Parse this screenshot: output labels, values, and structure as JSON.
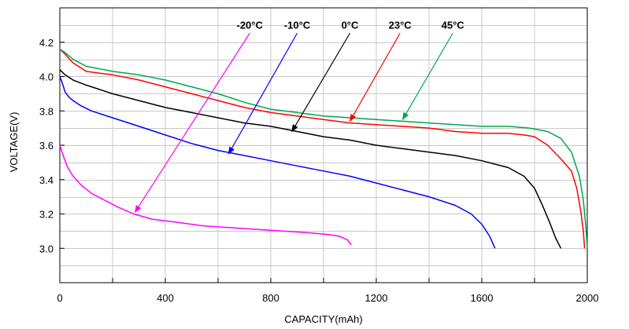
{
  "chart_data": {
    "type": "line",
    "title": "",
    "xlabel": "CAPACITY(mAh)",
    "ylabel": "VOLTAGE(V)",
    "xlim": [
      0,
      2000
    ],
    "ylim": [
      2.8,
      4.4
    ],
    "grid": true,
    "x_ticks": [
      0,
      400,
      800,
      1200,
      1600,
      2000
    ],
    "x_tick_labels": [
      "0",
      "400",
      "800",
      "1200",
      "1600",
      "2000"
    ],
    "y_ticks": [
      3.0,
      3.2,
      3.4,
      3.6,
      3.8,
      4.0,
      4.2
    ],
    "y_tick_labels": [
      "3.0",
      "3.2",
      "3.4",
      "3.6",
      "3.8",
      "4.0",
      "4.2"
    ],
    "series": [
      {
        "name": "-20°C",
        "color": "#ff00ff",
        "x": [
          0,
          15,
          30,
          50,
          80,
          120,
          170,
          220,
          280,
          350,
          450,
          550,
          650,
          750,
          850,
          950,
          1020,
          1060,
          1090,
          1105
        ],
        "y": [
          3.6,
          3.53,
          3.47,
          3.42,
          3.37,
          3.32,
          3.28,
          3.24,
          3.2,
          3.17,
          3.15,
          3.13,
          3.12,
          3.11,
          3.1,
          3.09,
          3.08,
          3.07,
          3.05,
          3.02
        ]
      },
      {
        "name": "-10°C",
        "color": "#0000ff",
        "x": [
          0,
          10,
          20,
          35,
          50,
          80,
          120,
          200,
          300,
          400,
          500,
          600,
          700,
          800,
          900,
          1000,
          1100,
          1200,
          1300,
          1400,
          1500,
          1560,
          1600,
          1630,
          1650
        ],
        "y": [
          4.0,
          3.96,
          3.91,
          3.88,
          3.86,
          3.83,
          3.8,
          3.76,
          3.71,
          3.66,
          3.61,
          3.57,
          3.54,
          3.51,
          3.48,
          3.45,
          3.42,
          3.38,
          3.34,
          3.3,
          3.25,
          3.2,
          3.14,
          3.07,
          3.0
        ]
      },
      {
        "name": "0°C",
        "color": "#000000",
        "x": [
          0,
          20,
          50,
          100,
          200,
          300,
          400,
          500,
          600,
          700,
          800,
          900,
          1000,
          1100,
          1200,
          1300,
          1400,
          1500,
          1600,
          1700,
          1760,
          1800,
          1830,
          1860,
          1880,
          1900
        ],
        "y": [
          4.04,
          4.01,
          3.98,
          3.95,
          3.9,
          3.86,
          3.82,
          3.79,
          3.76,
          3.73,
          3.71,
          3.68,
          3.65,
          3.63,
          3.6,
          3.58,
          3.56,
          3.54,
          3.51,
          3.47,
          3.42,
          3.35,
          3.25,
          3.14,
          3.06,
          3.0
        ]
      },
      {
        "name": "23°C",
        "color": "#ff0000",
        "x": [
          0,
          20,
          50,
          100,
          200,
          300,
          400,
          500,
          600,
          700,
          800,
          900,
          1000,
          1100,
          1200,
          1300,
          1400,
          1500,
          1600,
          1700,
          1760,
          1800,
          1850,
          1900,
          1940,
          1960,
          1975,
          1985,
          1990
        ],
        "y": [
          4.16,
          4.13,
          4.08,
          4.03,
          4.01,
          3.98,
          3.94,
          3.9,
          3.86,
          3.82,
          3.79,
          3.77,
          3.75,
          3.73,
          3.72,
          3.71,
          3.7,
          3.68,
          3.67,
          3.67,
          3.66,
          3.65,
          3.6,
          3.52,
          3.45,
          3.35,
          3.22,
          3.1,
          3.0
        ]
      },
      {
        "name": "45°C",
        "color": "#00a651",
        "x": [
          0,
          20,
          50,
          100,
          200,
          300,
          400,
          500,
          600,
          700,
          800,
          900,
          1000,
          1100,
          1200,
          1300,
          1400,
          1500,
          1600,
          1650,
          1700,
          1780,
          1850,
          1900,
          1940,
          1970,
          1985,
          1995,
          2000
        ],
        "y": [
          4.16,
          4.14,
          4.1,
          4.06,
          4.03,
          4.01,
          3.98,
          3.94,
          3.9,
          3.85,
          3.81,
          3.79,
          3.77,
          3.76,
          3.75,
          3.74,
          3.73,
          3.72,
          3.71,
          3.71,
          3.71,
          3.7,
          3.68,
          3.64,
          3.56,
          3.42,
          3.28,
          3.12,
          3.0
        ]
      }
    ],
    "annotations": [
      {
        "label": "-20°C",
        "color": "#ff00ff",
        "label_x": 720,
        "label_y": 4.28,
        "arrow_to_x": 285,
        "arrow_to_y": 3.21
      },
      {
        "label": "-10°C",
        "color": "#0000ff",
        "label_x": 900,
        "label_y": 4.28,
        "arrow_to_x": 640,
        "arrow_to_y": 3.55
      },
      {
        "label": "0°C",
        "color": "#000000",
        "label_x": 1100,
        "label_y": 4.28,
        "arrow_to_x": 880,
        "arrow_to_y": 3.68
      },
      {
        "label": "23°C",
        "color": "#ff0000",
        "label_x": 1290,
        "label_y": 4.28,
        "arrow_to_x": 1100,
        "arrow_to_y": 3.74
      },
      {
        "label": "45°C",
        "color": "#00a651",
        "label_x": 1490,
        "label_y": 4.28,
        "arrow_to_x": 1300,
        "arrow_to_y": 3.75
      }
    ]
  }
}
